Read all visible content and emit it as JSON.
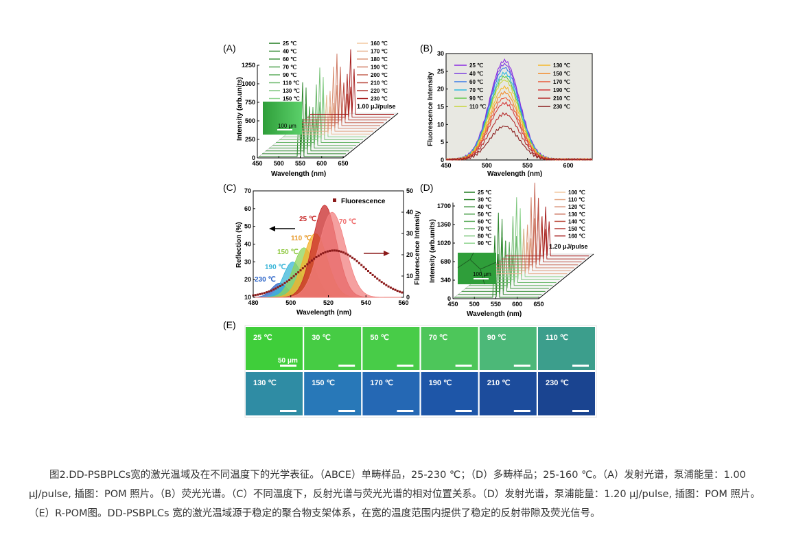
{
  "panels": {
    "A": {
      "label": "(A)",
      "ylabel": "Intensity (arb.units)",
      "xlabel": "Wavelength (nm)",
      "yticks": [
        "0",
        "250",
        "500",
        "750",
        "1000",
        "1250"
      ],
      "xticks": [
        "450",
        "500",
        "550",
        "600",
        "650"
      ],
      "legend_left": [
        "25 ℃",
        "40 ℃",
        "60 ℃",
        "70 ℃",
        "90 ℃",
        "110 ℃",
        "130 ℃",
        "150 ℃"
      ],
      "legend_right": [
        "160 ℃",
        "170 ℃",
        "180 ℃",
        "190 ℃",
        "200 ℃",
        "210 ℃",
        "220 ℃",
        "230 ℃"
      ],
      "energy": "1.00 μJ/pulse",
      "scalebar": "100 μm"
    },
    "B": {
      "label": "(B)",
      "ylabel": "Fluorescence Intensity",
      "xlabel": "Wavelength (nm)",
      "yticks": [
        "0",
        "5",
        "10",
        "15",
        "20",
        "25",
        "30"
      ],
      "xticks": [
        "450",
        "500",
        "550",
        "600"
      ],
      "legend_left": [
        "25 ℃",
        "40 ℃",
        "60 ℃",
        "70 ℃",
        "90 ℃",
        "110 ℃"
      ],
      "legend_right": [
        "130 ℃",
        "150 ℃",
        "170 ℃",
        "190 ℃",
        "210 ℃",
        "230 ℃"
      ]
    },
    "C": {
      "label": "(C)",
      "ylabel_left": "Reflection (%)",
      "ylabel_right": "Fluorescence Intensity",
      "xlabel": "Wavelength (nm)",
      "yticks_left": [
        "10",
        "20",
        "30",
        "40",
        "50",
        "60",
        "70"
      ],
      "yticks_right": [
        "0",
        "10",
        "20",
        "30",
        "40",
        "50"
      ],
      "xticks": [
        "480",
        "500",
        "520",
        "540",
        "560"
      ],
      "legend": "Fluorescence",
      "temps": [
        "25 ℃",
        "70 ℃",
        "110 ℃",
        "150 ℃",
        "190 ℃",
        "230 ℃"
      ]
    },
    "D": {
      "label": "(D)",
      "ylabel": "Intensity (arb.units)",
      "xlabel": "Wavelength (nm)",
      "yticks": [
        "0",
        "340",
        "680",
        "1020",
        "1360",
        "1700"
      ],
      "xticks": [
        "450",
        "500",
        "550",
        "600",
        "650"
      ],
      "legend_left": [
        "25 ℃",
        "30 ℃",
        "40 ℃",
        "50 ℃",
        "60 ℃",
        "70 ℃",
        "80 ℃",
        "90 ℃"
      ],
      "legend_right": [
        "100 ℃",
        "110 ℃",
        "120 ℃",
        "130 ℃",
        "140 ℃",
        "150 ℃",
        "160 ℃"
      ],
      "energy": "1.20 μJ/pulse",
      "scalebar": "100 μm"
    },
    "E": {
      "label": "(E)",
      "tiles": [
        "25 ℃",
        "30 ℃",
        "50 ℃",
        "70 ℃",
        "90 ℃",
        "110 ℃",
        "130 ℃",
        "150 ℃",
        "170 ℃",
        "190 ℃",
        "210 ℃",
        "230 ℃"
      ],
      "scalebar": "50 μm"
    }
  },
  "caption": "图2.DD-PSBPLCs宽的激光温域及在不同温度下的光学表征。（ABCE）单畴样品，25-230 ℃；（D）多畴样品；25-160 ℃。（A）发射光谱，泵浦能量：1.00 μJ/pulse, 插图：POM 照片。（B）荧光光谱。（C）不同温度下，反射光谱与荧光光谱的相对位置关系。（D）发射光谱，泵浦能量：1.20 μJ/pulse, 插图：POM 照片。（E）R-POM图。DD-PSBPLCs 宽的激光温域源于稳定的聚合物支架体系，在宽的温度范围内提供了稳定的反射带隙及荧光信号。",
  "colors": {
    "green_dark": "#1f7a1f",
    "green_light": "#8fd48f",
    "red_dark": "#a51c1c",
    "red_light": "#f2c9a0",
    "fluor_marker": "#8b1a1a"
  }
}
